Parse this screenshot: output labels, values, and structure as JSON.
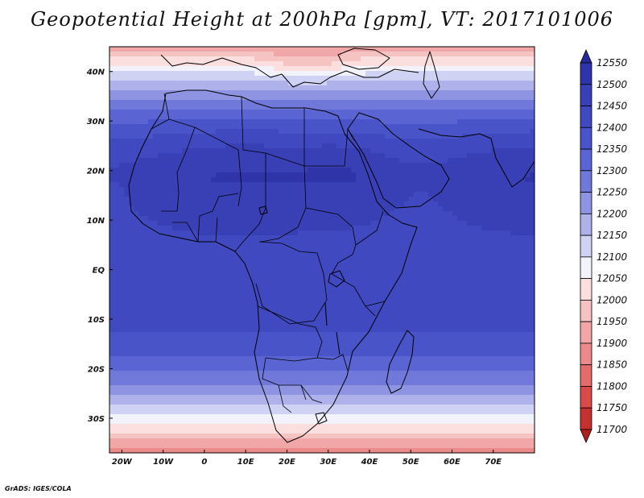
{
  "title": "Geopotential Height at 200hPa [gpm], VT: 2017101006",
  "credit": "GrADS: IGES/COLA",
  "map": {
    "lon_range": [
      -23,
      80
    ],
    "lat_range": [
      -37,
      45
    ],
    "lon_ticks": [
      {
        "value": -20,
        "label": "20W"
      },
      {
        "value": -10,
        "label": "10W"
      },
      {
        "value": 0,
        "label": "0"
      },
      {
        "value": 10,
        "label": "10E"
      },
      {
        "value": 20,
        "label": "20E"
      },
      {
        "value": 30,
        "label": "30E"
      },
      {
        "value": 40,
        "label": "40E"
      },
      {
        "value": 50,
        "label": "50E"
      },
      {
        "value": 60,
        "label": "60E"
      },
      {
        "value": 70,
        "label": "70E"
      }
    ],
    "lat_ticks": [
      {
        "value": 40,
        "label": "40N"
      },
      {
        "value": 30,
        "label": "30N"
      },
      {
        "value": 20,
        "label": "20N"
      },
      {
        "value": 10,
        "label": "10N"
      },
      {
        "value": 0,
        "label": "EQ"
      },
      {
        "value": -10,
        "label": "10S"
      },
      {
        "value": -20,
        "label": "20S"
      },
      {
        "value": -30,
        "label": "30S"
      }
    ]
  },
  "colorbar": {
    "levels": [
      12550,
      12500,
      12450,
      12400,
      12350,
      12300,
      12250,
      12200,
      12150,
      12100,
      12050,
      12000,
      11950,
      11900,
      11850,
      11800,
      11750,
      11700
    ],
    "colors": [
      "#262a99",
      "#2f35a8",
      "#3940b5",
      "#4049c0",
      "#4a54c9",
      "#5a64d2",
      "#7079da",
      "#8e94e1",
      "#afb2ea",
      "#d0d2f4",
      "#f2f2fb",
      "#fbdede",
      "#f6c3c3",
      "#f1a7a7",
      "#ea8a8a",
      "#e36c6c",
      "#d94b4b",
      "#c53030",
      "#b21f1f"
    ]
  }
}
